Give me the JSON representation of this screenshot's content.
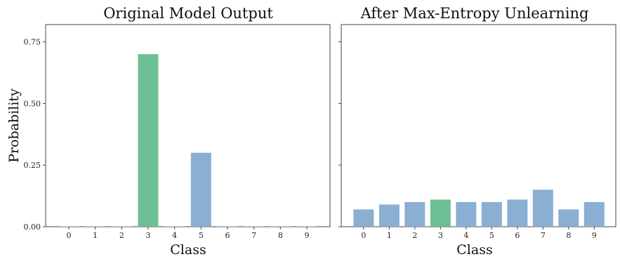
{
  "chart_data": [
    {
      "type": "bar",
      "title": "Original Model Output",
      "xlabel": "Class",
      "ylabel": "Probability",
      "categories": [
        "0",
        "1",
        "2",
        "3",
        "4",
        "5",
        "6",
        "7",
        "8",
        "9"
      ],
      "values": [
        0.0,
        0.0,
        0.0,
        0.7,
        0.0,
        0.3,
        0.0,
        0.0,
        0.0,
        0.0
      ],
      "highlight_index": 3,
      "ylim": [
        0,
        0.82
      ],
      "yticks": [
        0.0,
        0.25,
        0.5,
        0.75
      ],
      "ytick_labels": [
        "0.00",
        "0.25",
        "0.50",
        "0.75"
      ],
      "grid": false,
      "colors": {
        "default": "#8aafd2",
        "highlight": "#6fbf94"
      }
    },
    {
      "type": "bar",
      "title": "After Max-Entropy Unlearning",
      "xlabel": "Class",
      "ylabel": "",
      "categories": [
        "0",
        "1",
        "2",
        "3",
        "4",
        "5",
        "6",
        "7",
        "8",
        "9"
      ],
      "values": [
        0.07,
        0.09,
        0.1,
        0.11,
        0.1,
        0.1,
        0.11,
        0.15,
        0.07,
        0.1
      ],
      "highlight_index": 3,
      "ylim": [
        0,
        0.82
      ],
      "yticks": [
        0.0,
        0.25,
        0.5,
        0.75
      ],
      "ytick_labels": [],
      "grid": false,
      "colors": {
        "default": "#8aafd2",
        "highlight": "#6fbf94"
      }
    }
  ]
}
